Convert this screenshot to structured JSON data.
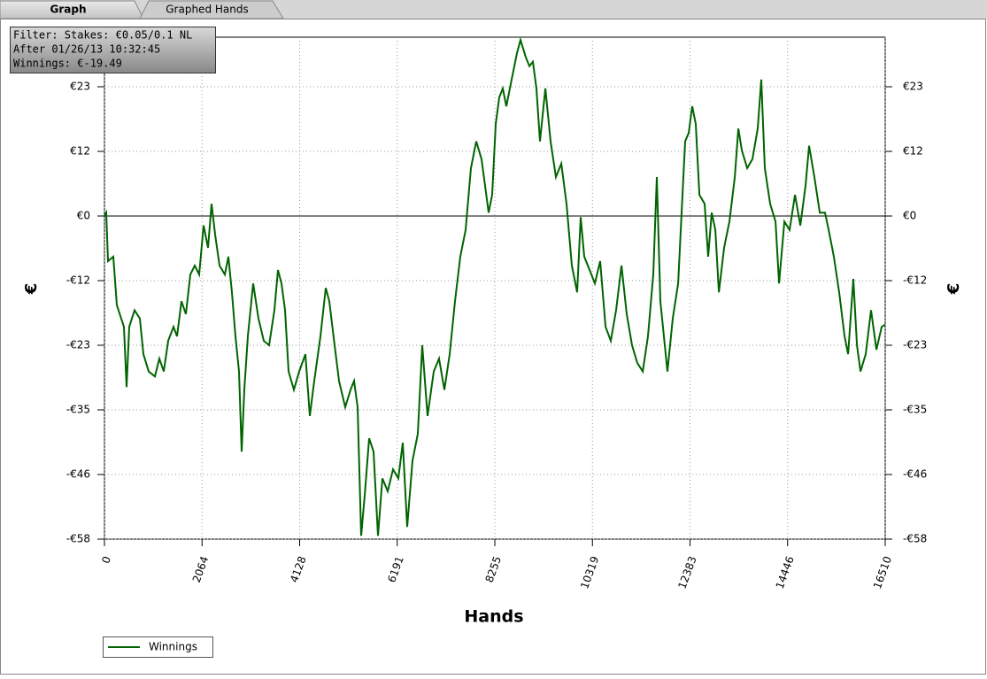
{
  "tabs": [
    "Graph",
    "Graphed Hands"
  ],
  "filter": [
    "Filter: Stakes: €0.05/0.1 NL",
    "After 01/26/13 10:32:45",
    "Winnings: €-19.49"
  ],
  "chart_data": {
    "type": "line",
    "xlabel": "Hands",
    "ylabel": "€",
    "xlim": [
      0,
      16510
    ],
    "xticks": [
      0,
      2064,
      4128,
      6191,
      8255,
      10319,
      12383,
      14446,
      16510
    ],
    "ylim": [
      -58,
      32.1
    ],
    "yticks": [
      {
        "value": -58,
        "label": "-€58"
      },
      {
        "value": -46.4,
        "label": "-€46"
      },
      {
        "value": -34.8,
        "label": "-€35"
      },
      {
        "value": -23.2,
        "label": "-€23"
      },
      {
        "value": -11.6,
        "label": "-€12"
      },
      {
        "value": 0,
        "label": "€0"
      },
      {
        "value": 11.6,
        "label": "€12"
      },
      {
        "value": 23.2,
        "label": "€23"
      }
    ],
    "grid": true,
    "legend": "bottom-left",
    "x": [
      0,
      37,
      75,
      187,
      262,
      412,
      468,
      524,
      636,
      749,
      824,
      936,
      1067,
      1161,
      1254,
      1348,
      1460,
      1535,
      1629,
      1722,
      1816,
      1909,
      2003,
      2097,
      2190,
      2265,
      2340,
      2434,
      2546,
      2621,
      2696,
      2771,
      2845,
      2902,
      2958,
      3033,
      3145,
      3257,
      3370,
      3482,
      3594,
      3669,
      3744,
      3819,
      3894,
      4006,
      4118,
      4249,
      4343,
      4437,
      4568,
      4680,
      4755,
      4867,
      4961,
      5092,
      5204,
      5279,
      5354,
      5429,
      5504,
      5597,
      5691,
      5784,
      5878,
      5990,
      6103,
      6215,
      6309,
      6402,
      6515,
      6627,
      6720,
      6833,
      6964,
      7076,
      7188,
      7301,
      7413,
      7525,
      7638,
      7750,
      7862,
      7975,
      8050,
      8124,
      8199,
      8274,
      8349,
      8424,
      8499,
      8611,
      8724,
      8798,
      8911,
      8986,
      9060,
      9135,
      9210,
      9323,
      9435,
      9547,
      9660,
      9772,
      9884,
      9996,
      10071,
      10146,
      10259,
      10371,
      10483,
      10596,
      10708,
      10820,
      10933,
      11045,
      11157,
      11269,
      11382,
      11494,
      11606,
      11681,
      11756,
      11831,
      11906,
      12018,
      12131,
      12205,
      12280,
      12355,
      12430,
      12505,
      12580,
      12692,
      12767,
      12842,
      12917,
      12992,
      13104,
      13216,
      13329,
      13404,
      13478,
      13591,
      13703,
      13815,
      13890,
      13965,
      14077,
      14190,
      14265,
      14377,
      14489,
      14602,
      14714,
      14826,
      14901,
      15013,
      15126,
      15238,
      15313,
      15425,
      15537,
      15650,
      15725,
      15837,
      15912,
      15987,
      16099,
      16211,
      16324,
      16436,
      16510
    ],
    "series": [
      {
        "name": "Winnings",
        "color": "#006400",
        "values": [
          0,
          0.6,
          -8.1,
          -7.3,
          -16.0,
          -19.9,
          -30.7,
          -19.9,
          -16.9,
          -18.4,
          -24.8,
          -27.9,
          -28.8,
          -25.6,
          -27.9,
          -22.4,
          -19.9,
          -21.6,
          -15.3,
          -17.6,
          -10.5,
          -8.9,
          -10.5,
          -1.7,
          -5.7,
          2.2,
          -3.3,
          -8.9,
          -10.5,
          -7.3,
          -13.7,
          -21.6,
          -27.9,
          -42.3,
          -31.2,
          -21.6,
          -12.1,
          -18.4,
          -22.4,
          -23.2,
          -16.9,
          -9.7,
          -12.1,
          -16.9,
          -27.9,
          -31.2,
          -27.9,
          -24.8,
          -35.9,
          -29.6,
          -21.6,
          -12.9,
          -15.3,
          -23.2,
          -29.6,
          -34.3,
          -31.2,
          -29.6,
          -34.3,
          -57.4,
          -50.2,
          -39.9,
          -42.3,
          -57.4,
          -47.1,
          -49.4,
          -45.5,
          -47.1,
          -40.7,
          -55.8,
          -43.9,
          -39.1,
          -23.2,
          -35.9,
          -27.9,
          -25.6,
          -31.2,
          -24.8,
          -15.3,
          -7.3,
          -2.5,
          8.6,
          13.4,
          10.2,
          5.4,
          0.6,
          3.8,
          16.5,
          21.3,
          22.9,
          19.7,
          24.5,
          29.3,
          31.6,
          28.5,
          26.9,
          27.7,
          22.9,
          13.4,
          22.9,
          13.4,
          7.0,
          9.4,
          2.2,
          -8.9,
          -13.7,
          -0.2,
          -7.3,
          -9.7,
          -12.1,
          -8.1,
          -19.9,
          -22.4,
          -16.9,
          -8.9,
          -17.6,
          -23.2,
          -26.4,
          -27.9,
          -21.6,
          -10.5,
          7.0,
          -15.3,
          -21.6,
          -27.9,
          -18.4,
          -12.1,
          0.6,
          13.4,
          14.9,
          19.7,
          16.5,
          3.8,
          2.2,
          -7.3,
          0.6,
          -2.5,
          -13.7,
          -5.7,
          -1.0,
          7.0,
          15.7,
          11.8,
          8.6,
          10.2,
          15.7,
          24.5,
          8.6,
          2.2,
          -1.0,
          -12.1,
          -1.0,
          -2.5,
          3.8,
          -1.7,
          5.4,
          12.6,
          7.0,
          0.6,
          0.6,
          -2.5,
          -7.3,
          -13.7,
          -21.6,
          -24.8,
          -11.3,
          -23.2,
          -27.9,
          -24.8,
          -16.9,
          -24.0,
          -19.9,
          -19.49
        ]
      }
    ]
  }
}
